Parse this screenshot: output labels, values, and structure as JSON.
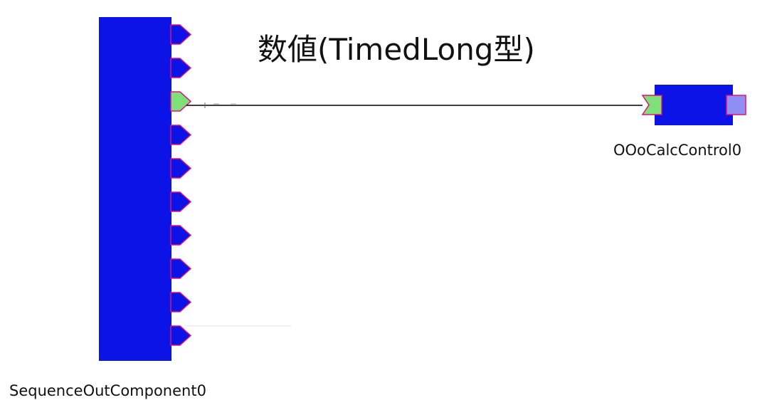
{
  "colors": {
    "component_fill": "#0b13e6",
    "port_fill": "#0b13e6",
    "port_outline": "#e0107a",
    "connected_port_fill": "#7fe07a",
    "inport_fill": "#7fe07a",
    "service_port_fill": "#8f8ef5",
    "connector_line": "#000000"
  },
  "diagram": {
    "connector_label": "数値(TimedLong型)",
    "components": [
      {
        "id": "sequence_out",
        "name": "SequenceOutComponent0",
        "outports": 10,
        "connected_outport_index": 2
      },
      {
        "id": "ooocalc",
        "name": "OOoCalcControl0",
        "inports": 1,
        "service_ports": 1
      }
    ],
    "connections": [
      {
        "from": "SequenceOutComponent0",
        "to": "OOoCalcControl0",
        "label": "数値(TimedLong型)"
      }
    ]
  }
}
